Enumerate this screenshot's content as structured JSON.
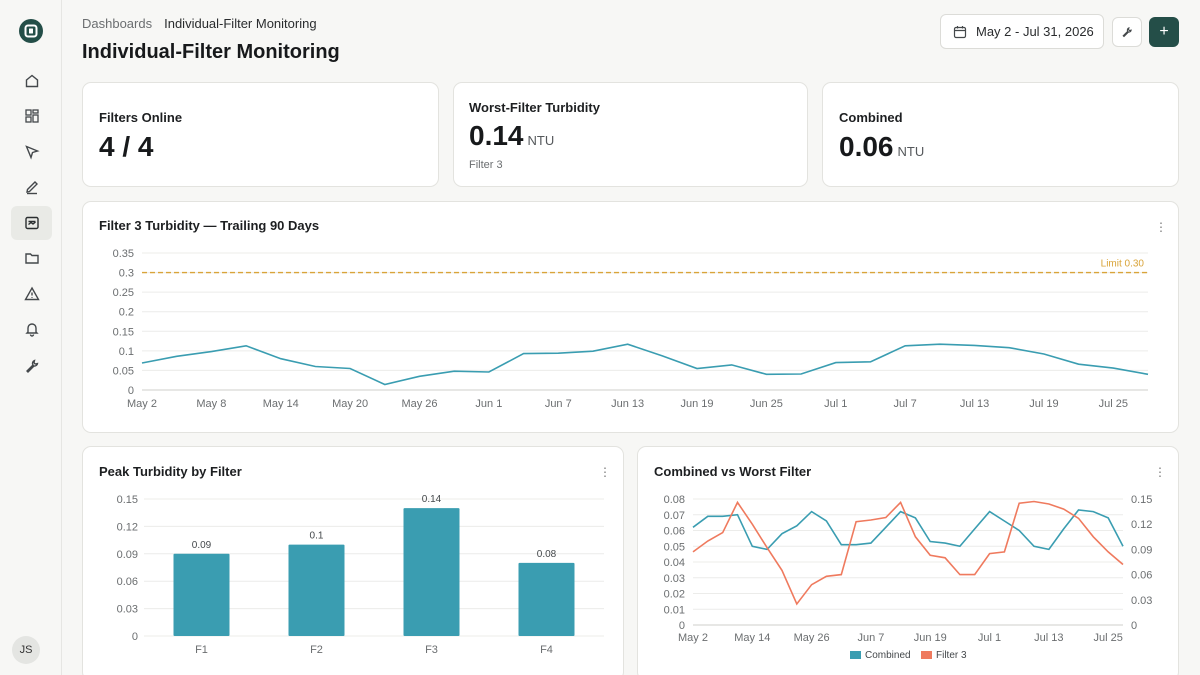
{
  "sidebar": {
    "items": [
      {
        "name": "home-icon",
        "active": false
      },
      {
        "name": "dashboard-grid-icon",
        "active": false
      },
      {
        "name": "cursor-arrow-icon",
        "active": false
      },
      {
        "name": "pencil-icon",
        "active": false
      },
      {
        "name": "monitor-chart-icon",
        "active": true
      },
      {
        "name": "folder-icon",
        "active": false
      },
      {
        "name": "alert-triangle-icon",
        "active": false
      },
      {
        "name": "bell-icon",
        "active": false
      },
      {
        "name": "wrench-icon",
        "active": false
      }
    ],
    "avatar_initials": "JS"
  },
  "header": {
    "breadcrumb_root": "Dashboards",
    "breadcrumb_current": "Individual-Filter Monitoring",
    "title": "Individual-Filter Monitoring",
    "date_range": "May 2 - Jul 31, 2026",
    "add_label": "+"
  },
  "kpis": {
    "filters_online": {
      "label": "Filters Online",
      "value": "4 / 4"
    },
    "worst_filter": {
      "label": "Worst-Filter Turbidity",
      "value": "0.14",
      "unit": "NTU",
      "sub": "Filter 3"
    },
    "combined": {
      "label": "Combined",
      "value": "0.06",
      "unit": "NTU"
    }
  },
  "colors": {
    "teal": "#3a9db1",
    "orange": "#ef7a5e",
    "limit": "#d9a43a",
    "accent": "#244e48"
  },
  "chart_data": [
    {
      "type": "line",
      "title": "Filter 3 Turbidity — Trailing 90 Days",
      "x": [
        "May 2",
        "May 5",
        "May 8",
        "May 11",
        "May 14",
        "May 17",
        "May 20",
        "May 23",
        "May 26",
        "May 29",
        "Jun 1",
        "Jun 4",
        "Jun 7",
        "Jun 10",
        "Jun 13",
        "Jun 16",
        "Jun 19",
        "Jun 22",
        "Jun 25",
        "Jun 28",
        "Jul 1",
        "Jul 4",
        "Jul 7",
        "Jul 10",
        "Jul 13",
        "Jul 16",
        "Jul 19",
        "Jul 22",
        "Jul 25",
        "Jul 28"
      ],
      "xticks": [
        "May 2",
        "May 8",
        "May 14",
        "May 20",
        "May 26",
        "Jun 1",
        "Jun 7",
        "Jun 13",
        "Jun 19",
        "Jun 25",
        "Jul 1",
        "Jul 7",
        "Jul 13",
        "Jul 19",
        "Jul 25"
      ],
      "values": [
        0.069,
        0.086,
        0.098,
        0.113,
        0.08,
        0.06,
        0.055,
        0.014,
        0.035,
        0.048,
        0.046,
        0.093,
        0.094,
        0.099,
        0.117,
        0.087,
        0.055,
        0.064,
        0.04,
        0.041,
        0.07,
        0.072,
        0.113,
        0.117,
        0.114,
        0.108,
        0.092,
        0.066,
        0.056,
        0.04
      ],
      "yticks": [
        "0",
        "0.05",
        "0.1",
        "0.15",
        "0.2",
        "0.25",
        "0.3",
        "0.35"
      ],
      "ylim": [
        0,
        0.35
      ],
      "limit": {
        "value": 0.3,
        "label": "Limit 0.30"
      },
      "grid": true
    },
    {
      "type": "bar",
      "title": "Peak Turbidity by Filter",
      "categories": [
        "F1",
        "F2",
        "F3",
        "F4"
      ],
      "values": [
        0.09,
        0.1,
        0.14,
        0.08
      ],
      "labels": [
        "0.09",
        "0.1",
        "0.14",
        "0.08"
      ],
      "yticks": [
        "0",
        "0.03",
        "0.06",
        "0.09",
        "0.12",
        "0.15"
      ],
      "ylim": [
        0,
        0.15
      ],
      "grid": true
    },
    {
      "type": "line",
      "title": "Combined vs Worst Filter",
      "xticks": [
        "May 2",
        "May 14",
        "May 26",
        "Jun 7",
        "Jun 19",
        "Jul 1",
        "Jul 13",
        "Jul 25"
      ],
      "series": [
        {
          "name": "Combined",
          "axis": "left",
          "values": [
            0.062,
            0.069,
            0.069,
            0.07,
            0.05,
            0.048,
            0.058,
            0.063,
            0.072,
            0.066,
            0.051,
            0.051,
            0.052,
            0.062,
            0.072,
            0.068,
            0.053,
            0.052,
            0.05,
            0.061,
            0.072,
            0.066,
            0.06,
            0.05,
            0.048,
            0.061,
            0.073,
            0.072,
            0.068,
            0.05
          ]
        },
        {
          "name": "Filter 3",
          "axis": "right",
          "values": [
            0.087,
            0.1,
            0.11,
            0.146,
            0.12,
            0.092,
            0.065,
            0.025,
            0.048,
            0.058,
            0.06,
            0.123,
            0.125,
            0.128,
            0.146,
            0.105,
            0.083,
            0.08,
            0.06,
            0.06,
            0.085,
            0.087,
            0.145,
            0.147,
            0.144,
            0.138,
            0.127,
            0.105,
            0.087,
            0.072
          ]
        }
      ],
      "yticks_left": [
        "0",
        "0.01",
        "0.02",
        "0.03",
        "0.04",
        "0.05",
        "0.06",
        "0.07",
        "0.08"
      ],
      "ylim_left": [
        0,
        0.08
      ],
      "yticks_right": [
        "0",
        "0.03",
        "0.06",
        "0.09",
        "0.12",
        "0.15"
      ],
      "ylim_right": [
        0,
        0.15
      ],
      "legend": "bottom",
      "grid": true
    }
  ]
}
